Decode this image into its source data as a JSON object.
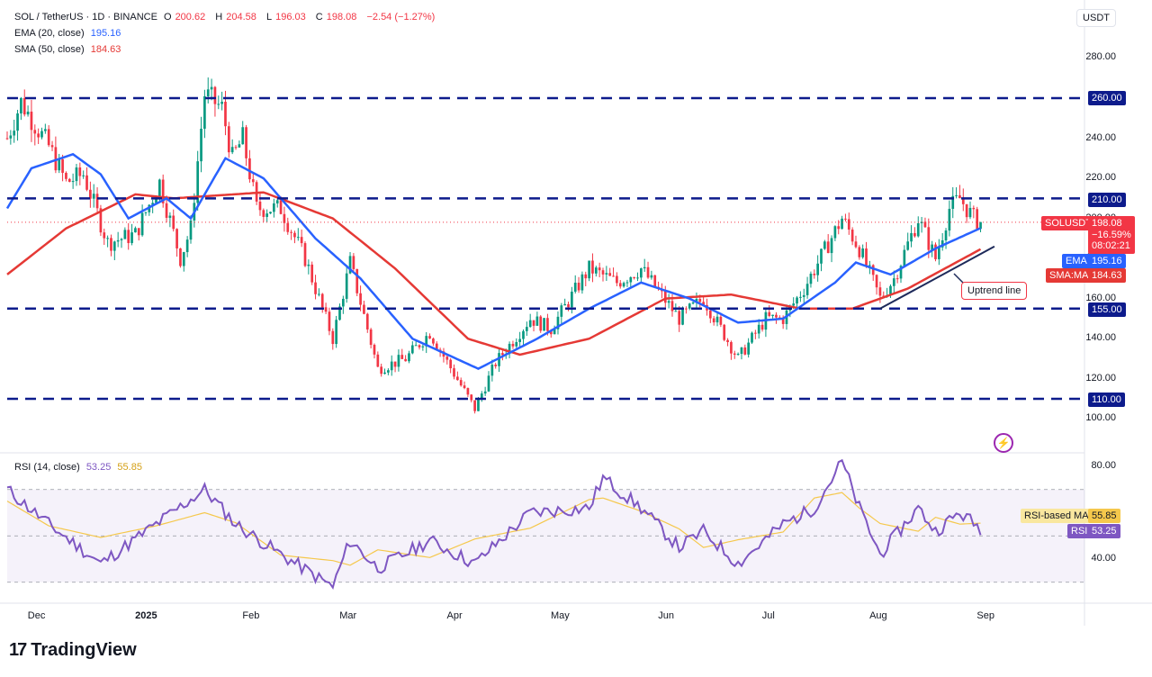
{
  "header": {
    "symbol": "SOL / TetherUS · 1D · BINANCE",
    "ohlc": [
      {
        "k": "O",
        "v": "200.62"
      },
      {
        "k": "H",
        "v": "204.58"
      },
      {
        "k": "L",
        "v": "196.03"
      },
      {
        "k": "C",
        "v": "198.08"
      }
    ],
    "change": "−2.54 (−1.27%)",
    "ema_label": "EMA (20, close)",
    "ema_value": "195.16",
    "sma_label": "SMA (50, close)",
    "sma_value": "184.63",
    "rsi_label": "RSI (14, close)",
    "rsi_value": "53.25",
    "rsi_ma_value": "55.85"
  },
  "currency_button": "USDT",
  "price_axis": [
    "280.00",
    "240.00",
    "220.00",
    "200.00",
    "180.00",
    "160.00",
    "140.00",
    "120.00",
    "100.00"
  ],
  "rsi_axis": [
    "80.00",
    "40.00"
  ],
  "months": [
    "Dec",
    "2025",
    "Feb",
    "Mar",
    "Apr",
    "May",
    "Jun",
    "Jul",
    "Aug",
    "Sep"
  ],
  "level_tags": [
    "260.00",
    "210.00",
    "155.00",
    "110.00"
  ],
  "price_tag": {
    "name": "SOLUSDT",
    "price": "198.08",
    "pct": "−16.59%",
    "countdown": "08:02:21"
  },
  "ema_tag": {
    "name": "EMA",
    "value": "195.16"
  },
  "sma_tag": {
    "name": "SMA:MA",
    "value": "184.63"
  },
  "rsi_ma_tag": {
    "name": "RSI-based MA",
    "value": "55.85"
  },
  "rsi_tag": {
    "name": "RSI",
    "value": "53.25"
  },
  "annotation": "Uptrend line",
  "brand": "TradingView",
  "colors": {
    "up": "#089981",
    "down": "#f23645",
    "ema": "#2962ff",
    "sma": "#e53935",
    "rsi": "#7e57c2",
    "rsi_ma": "#f5c84c",
    "level": "#0d1b8c"
  },
  "chart_data": {
    "type": "candlestick",
    "title": "SOL / TetherUS · 1D · BINANCE",
    "ylim": [
      95,
      300
    ],
    "horizontal_levels": [
      260,
      210,
      155,
      110
    ],
    "price_keypoints": [
      {
        "date": "2024-11-23",
        "close": 240
      },
      {
        "date": "2024-11-27",
        "close": 258
      },
      {
        "date": "2024-12-05",
        "close": 236
      },
      {
        "date": "2024-12-10",
        "close": 218
      },
      {
        "date": "2024-12-15",
        "close": 222
      },
      {
        "date": "2024-12-22",
        "close": 188
      },
      {
        "date": "2024-12-30",
        "close": 192
      },
      {
        "date": "2025-01-06",
        "close": 218
      },
      {
        "date": "2025-01-12",
        "close": 180
      },
      {
        "date": "2025-01-15",
        "close": 195
      },
      {
        "date": "2025-01-19",
        "close": 262
      },
      {
        "date": "2025-01-24",
        "close": 255
      },
      {
        "date": "2025-01-27",
        "close": 230
      },
      {
        "date": "2025-01-30",
        "close": 240
      },
      {
        "date": "2025-02-03",
        "close": 205
      },
      {
        "date": "2025-02-10",
        "close": 205
      },
      {
        "date": "2025-02-17",
        "close": 180
      },
      {
        "date": "2025-02-25",
        "close": 140
      },
      {
        "date": "2025-03-02",
        "close": 178
      },
      {
        "date": "2025-03-10",
        "close": 125
      },
      {
        "date": "2025-03-18",
        "close": 130
      },
      {
        "date": "2025-03-25",
        "close": 143
      },
      {
        "date": "2025-04-07",
        "close": 105
      },
      {
        "date": "2025-04-13",
        "close": 128
      },
      {
        "date": "2025-04-23",
        "close": 150
      },
      {
        "date": "2025-04-29",
        "close": 145
      },
      {
        "date": "2025-05-10",
        "close": 175
      },
      {
        "date": "2025-05-18",
        "close": 168
      },
      {
        "date": "2025-05-25",
        "close": 175
      },
      {
        "date": "2025-06-05",
        "close": 150
      },
      {
        "date": "2025-06-12",
        "close": 160
      },
      {
        "date": "2025-06-22",
        "close": 130
      },
      {
        "date": "2025-06-30",
        "close": 150
      },
      {
        "date": "2025-07-05",
        "close": 150
      },
      {
        "date": "2025-07-11",
        "close": 165
      },
      {
        "date": "2025-07-22",
        "close": 200
      },
      {
        "date": "2025-07-27",
        "close": 185
      },
      {
        "date": "2025-08-02",
        "close": 160
      },
      {
        "date": "2025-08-06",
        "close": 170
      },
      {
        "date": "2025-08-13",
        "close": 200
      },
      {
        "date": "2025-08-18",
        "close": 180
      },
      {
        "date": "2025-08-22",
        "close": 205
      },
      {
        "date": "2025-08-25",
        "close": 210
      },
      {
        "date": "2025-08-29",
        "close": 200
      },
      {
        "date": "2025-08-31",
        "close": 198.08
      }
    ],
    "ema20_keypoints": [
      {
        "date": "2024-11-23",
        "v": 205
      },
      {
        "date": "2024-11-30",
        "v": 225
      },
      {
        "date": "2024-12-12",
        "v": 232
      },
      {
        "date": "2024-12-20",
        "v": 222
      },
      {
        "date": "2024-12-28",
        "v": 200
      },
      {
        "date": "2025-01-08",
        "v": 210
      },
      {
        "date": "2025-01-15",
        "v": 200
      },
      {
        "date": "2025-01-25",
        "v": 230
      },
      {
        "date": "2025-02-05",
        "v": 220
      },
      {
        "date": "2025-02-20",
        "v": 190
      },
      {
        "date": "2025-03-05",
        "v": 170
      },
      {
        "date": "2025-03-20",
        "v": 140
      },
      {
        "date": "2025-04-08",
        "v": 125
      },
      {
        "date": "2025-04-25",
        "v": 140
      },
      {
        "date": "2025-05-10",
        "v": 155
      },
      {
        "date": "2025-05-25",
        "v": 168
      },
      {
        "date": "2025-06-08",
        "v": 160
      },
      {
        "date": "2025-06-22",
        "v": 148
      },
      {
        "date": "2025-07-05",
        "v": 150
      },
      {
        "date": "2025-07-20",
        "v": 168
      },
      {
        "date": "2025-07-26",
        "v": 178
      },
      {
        "date": "2025-08-05",
        "v": 172
      },
      {
        "date": "2025-08-18",
        "v": 185
      },
      {
        "date": "2025-08-31",
        "v": 195.16
      }
    ],
    "sma50_keypoints": [
      {
        "date": "2024-11-23",
        "v": 172
      },
      {
        "date": "2024-12-10",
        "v": 195
      },
      {
        "date": "2024-12-30",
        "v": 212
      },
      {
        "date": "2025-01-10",
        "v": 210
      },
      {
        "date": "2025-02-05",
        "v": 213
      },
      {
        "date": "2025-02-25",
        "v": 200
      },
      {
        "date": "2025-03-15",
        "v": 175
      },
      {
        "date": "2025-04-05",
        "v": 140
      },
      {
        "date": "2025-04-20",
        "v": 132
      },
      {
        "date": "2025-05-10",
        "v": 140
      },
      {
        "date": "2025-06-01",
        "v": 160
      },
      {
        "date": "2025-06-20",
        "v": 162
      },
      {
        "date": "2025-07-10",
        "v": 155
      },
      {
        "date": "2025-07-25",
        "v": 155
      },
      {
        "date": "2025-08-10",
        "v": 165
      },
      {
        "date": "2025-08-31",
        "v": 184.63
      }
    ],
    "rsi_keypoints": [
      {
        "date": "2024-11-23",
        "v": 70
      },
      {
        "date": "2024-12-05",
        "v": 55
      },
      {
        "date": "2024-12-20",
        "v": 38
      },
      {
        "date": "2025-01-05",
        "v": 55
      },
      {
        "date": "2025-01-19",
        "v": 70
      },
      {
        "date": "2025-01-28",
        "v": 55
      },
      {
        "date": "2025-02-10",
        "v": 42
      },
      {
        "date": "2025-02-25",
        "v": 28
      },
      {
        "date": "2025-03-02",
        "v": 48
      },
      {
        "date": "2025-03-10",
        "v": 36
      },
      {
        "date": "2025-03-25",
        "v": 48
      },
      {
        "date": "2025-04-07",
        "v": 38
      },
      {
        "date": "2025-04-23",
        "v": 60
      },
      {
        "date": "2025-05-10",
        "v": 62
      },
      {
        "date": "2025-05-14",
        "v": 75
      },
      {
        "date": "2025-05-25",
        "v": 62
      },
      {
        "date": "2025-06-05",
        "v": 45
      },
      {
        "date": "2025-06-12",
        "v": 52
      },
      {
        "date": "2025-06-22",
        "v": 38
      },
      {
        "date": "2025-07-05",
        "v": 55
      },
      {
        "date": "2025-07-14",
        "v": 62
      },
      {
        "date": "2025-07-22",
        "v": 82
      },
      {
        "date": "2025-07-27",
        "v": 62
      },
      {
        "date": "2025-08-02",
        "v": 42
      },
      {
        "date": "2025-08-13",
        "v": 62
      },
      {
        "date": "2025-08-18",
        "v": 52
      },
      {
        "date": "2025-08-25",
        "v": 60
      },
      {
        "date": "2025-08-31",
        "v": 53.25
      }
    ],
    "rsi_ylim": [
      20,
      88
    ],
    "rsi_bands": [
      70,
      30
    ],
    "uptrend_line": [
      {
        "date": "2025-08-02",
        "v": 155
      },
      {
        "date": "2025-09-04",
        "v": 186
      }
    ]
  }
}
